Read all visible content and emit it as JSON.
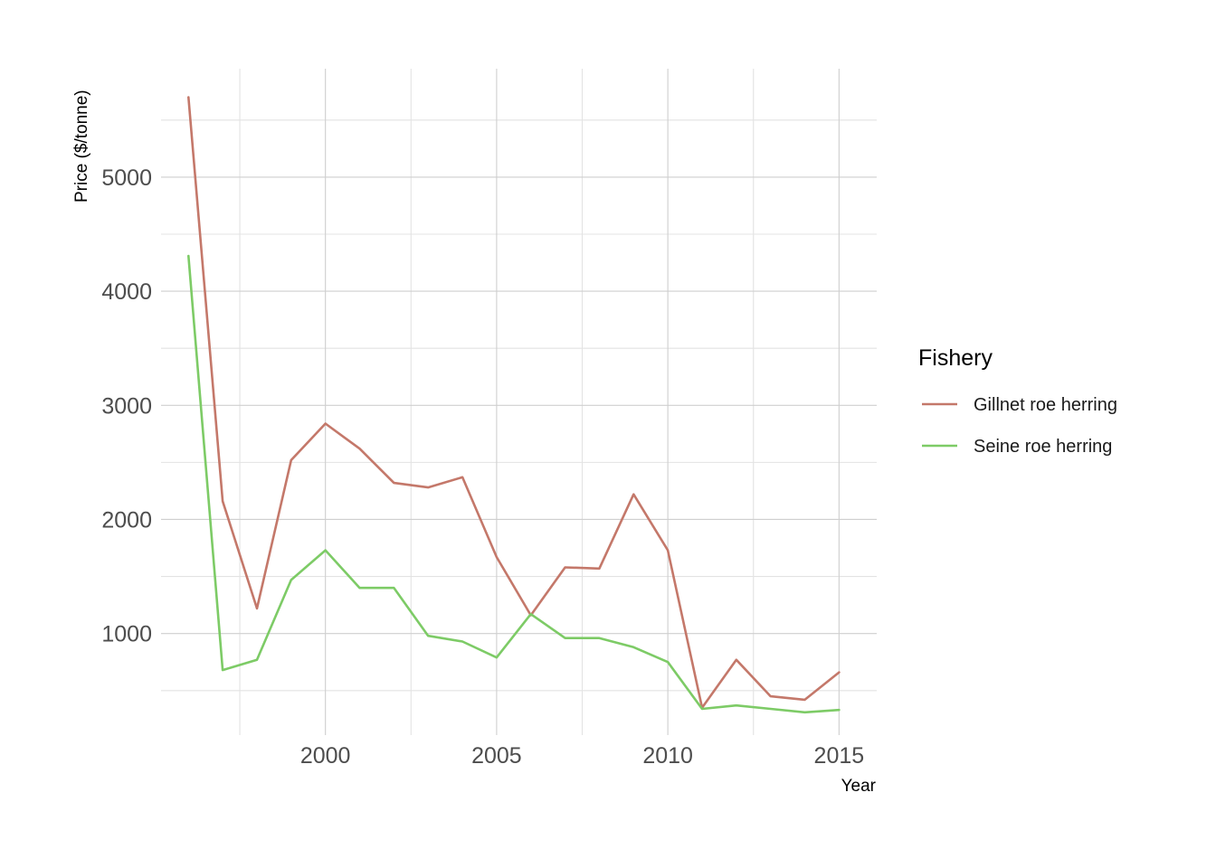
{
  "chart_data": {
    "type": "line",
    "xlabel": "Year",
    "ylabel": "Price ($/tonne)",
    "x": [
      1996,
      1997,
      1998,
      1999,
      2000,
      2001,
      2002,
      2003,
      2004,
      2005,
      2006,
      2007,
      2008,
      2009,
      2010,
      2011,
      2012,
      2013,
      2014,
      2015
    ],
    "xlim": [
      1995.2,
      2016.1
    ],
    "ylim": [
      110,
      5950
    ],
    "x_ticks": [
      2000,
      2005,
      2010,
      2015
    ],
    "x_minor_ticks": [
      1997.5,
      2002.5,
      2007.5,
      2012.5
    ],
    "y_ticks": [
      1000,
      2000,
      3000,
      4000,
      5000
    ],
    "y_minor_ticks": [
      500,
      1500,
      2500,
      3500,
      4500,
      5500
    ],
    "x_tick_labels": [
      "2000",
      "2005",
      "2010",
      "2015"
    ],
    "y_tick_labels": [
      "1000",
      "2000",
      "3000",
      "4000",
      "5000"
    ],
    "grid": true,
    "legend_title": "Fishery",
    "legend_position": "right",
    "series": [
      {
        "name": "Gillnet roe herring",
        "color": "#c4786a",
        "values": [
          5700,
          2160,
          1220,
          2520,
          2840,
          2620,
          2320,
          2280,
          2370,
          1670,
          1160,
          1580,
          1570,
          2220,
          1730,
          350,
          770,
          450,
          420,
          660
        ]
      },
      {
        "name": "Seine roe herring",
        "color": "#7dcb66",
        "values": [
          4310,
          680,
          770,
          1470,
          1730,
          1400,
          1400,
          980,
          930,
          790,
          1170,
          960,
          960,
          880,
          750,
          340,
          370,
          340,
          310,
          330
        ]
      }
    ]
  }
}
